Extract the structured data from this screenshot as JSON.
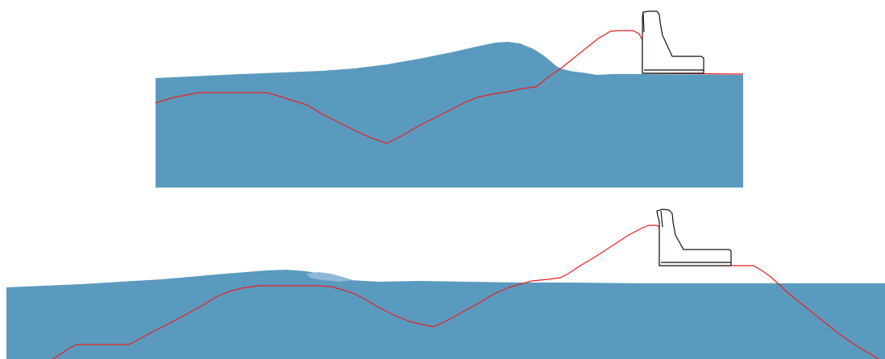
{
  "colors": {
    "background": "#ffffff",
    "water": "#5b9abf",
    "foam": "#8db9d4",
    "bed_profile": "#e8201c",
    "structure_outline": "#111111"
  },
  "panels": [
    {
      "id": "top",
      "content": "wave-overtopping-simulation-frame"
    },
    {
      "id": "bottom",
      "content": "wave-overtopping-simulation-frame"
    }
  ]
}
